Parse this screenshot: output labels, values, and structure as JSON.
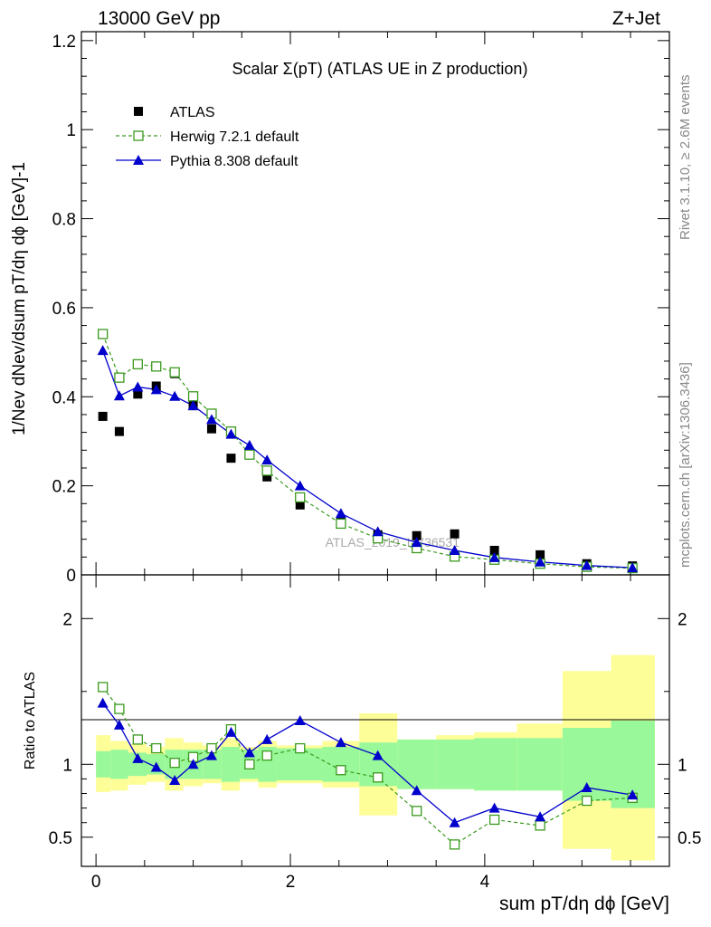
{
  "header": {
    "left": "13000 GeV pp",
    "right": "Z+Jet"
  },
  "side_labels": {
    "rivet": "Rivet 3.1.10, ≥ 2.6M events",
    "mcplots": "mcplots.cern.ch [arXiv:1306.3436]"
  },
  "watermark": "ATLAS_2019_I1736531",
  "colors": {
    "atlas": "#000000",
    "herwig": "#3a9a1e",
    "pythia": "#0000cc",
    "band_inner": "#99f899",
    "band_outer": "#fefe99"
  },
  "chart_data": [
    {
      "type": "scatter",
      "title": "Scalar Σ(pT) (ATLAS UE in Z production)",
      "ylabel": "1/Nev dNev/dsum pT/dη dϕ [GeV]-1",
      "xlim": [
        -0.15,
        5.9
      ],
      "ylim": [
        0,
        1.22
      ],
      "yticks": [
        0,
        0.2,
        0.4,
        0.6,
        0.8,
        1,
        1.2
      ],
      "ytick_labels": [
        "0",
        "0.2",
        "0.4",
        "0.6",
        "0.8",
        "1",
        "1.2"
      ],
      "legend_position": "top-left",
      "x": [
        0.07,
        0.24,
        0.43,
        0.62,
        0.81,
        1.0,
        1.19,
        1.39,
        1.58,
        1.76,
        2.1,
        2.52,
        2.9,
        3.3,
        3.69,
        4.1,
        4.57,
        5.05,
        5.52
      ],
      "series": [
        {
          "name": "ATLAS",
          "values": [
            0.356,
            0.322,
            0.406,
            0.424,
            0.452,
            0.38,
            0.328,
            0.262,
            0.27,
            0.22,
            0.157,
            0.12,
            0.09,
            0.088,
            0.092,
            0.055,
            0.045,
            0.025,
            0.02
          ]
        },
        {
          "name": "Herwig 7.2.1 default",
          "values": [
            0.541,
            0.443,
            0.473,
            0.468,
            0.455,
            0.401,
            0.362,
            0.322,
            0.27,
            0.234,
            0.174,
            0.115,
            0.082,
            0.06,
            0.041,
            0.034,
            0.025,
            0.018,
            0.015
          ]
        },
        {
          "name": "Pythia 8.308 default",
          "values": [
            0.504,
            0.402,
            0.422,
            0.416,
            0.401,
            0.38,
            0.349,
            0.316,
            0.291,
            0.258,
            0.2,
            0.138,
            0.097,
            0.073,
            0.055,
            0.039,
            0.029,
            0.021,
            0.016
          ]
        }
      ]
    },
    {
      "type": "line",
      "ylabel": "Ratio to ATLAS",
      "xlabel": "sum pT/dη dϕ [GeV]",
      "xlim": [
        -0.15,
        5.9
      ],
      "ylim": [
        0.3,
        2.3
      ],
      "yticks": [
        0.5,
        1,
        2
      ],
      "ytick_labels": [
        "0.5",
        "1",
        "2"
      ],
      "xticks": [
        0,
        2,
        4
      ],
      "xtick_labels": [
        "0",
        "2",
        "4"
      ],
      "bin_edges": [
        0,
        0.15,
        0.33,
        0.52,
        0.71,
        0.9,
        1.1,
        1.29,
        1.48,
        1.67,
        1.86,
        2.33,
        2.71,
        3.1,
        3.5,
        3.89,
        4.33,
        4.8,
        5.3,
        5.75
      ],
      "band_inner": {
        "lo": [
          0.91,
          0.9,
          0.92,
          0.93,
          0.9,
          0.9,
          0.9,
          0.88,
          0.9,
          0.88,
          0.89,
          0.88,
          0.85,
          0.83,
          0.83,
          0.82,
          0.82,
          0.75,
          0.7
        ],
        "hi": [
          1.09,
          1.1,
          1.08,
          1.07,
          1.1,
          1.1,
          1.1,
          1.12,
          1.1,
          1.12,
          1.11,
          1.12,
          1.15,
          1.17,
          1.17,
          1.18,
          1.18,
          1.25,
          1.3
        ]
      },
      "band_outer": {
        "lo": [
          0.81,
          0.82,
          0.86,
          0.88,
          0.82,
          0.85,
          0.87,
          0.82,
          0.88,
          0.84,
          0.87,
          0.84,
          0.65,
          0.83,
          0.83,
          0.82,
          0.82,
          0.42,
          0.34
        ],
        "hi": [
          1.2,
          1.16,
          1.14,
          1.12,
          1.18,
          1.15,
          1.13,
          1.18,
          1.12,
          1.16,
          1.13,
          1.16,
          1.35,
          1.17,
          1.2,
          1.22,
          1.28,
          1.64,
          1.75
        ]
      },
      "x": [
        0.07,
        0.24,
        0.43,
        0.62,
        0.81,
        1.0,
        1.19,
        1.39,
        1.58,
        1.76,
        2.1,
        2.52,
        2.9,
        3.3,
        3.69,
        4.1,
        4.57,
        5.05,
        5.52
      ],
      "series": [
        {
          "name": "Herwig 7.2.1 default",
          "values": [
            1.53,
            1.38,
            1.17,
            1.11,
            1.01,
            1.05,
            1.11,
            1.24,
            1.0,
            1.06,
            1.11,
            0.96,
            0.91,
            0.68,
            0.45,
            0.62,
            0.58,
            0.75,
            0.77
          ]
        },
        {
          "name": "Pythia 8.308 default",
          "values": [
            1.42,
            1.27,
            1.04,
            0.98,
            0.89,
            1.0,
            1.06,
            1.22,
            1.08,
            1.17,
            1.3,
            1.15,
            1.06,
            0.82,
            0.6,
            0.7,
            0.64,
            0.84,
            0.79
          ]
        }
      ]
    }
  ]
}
